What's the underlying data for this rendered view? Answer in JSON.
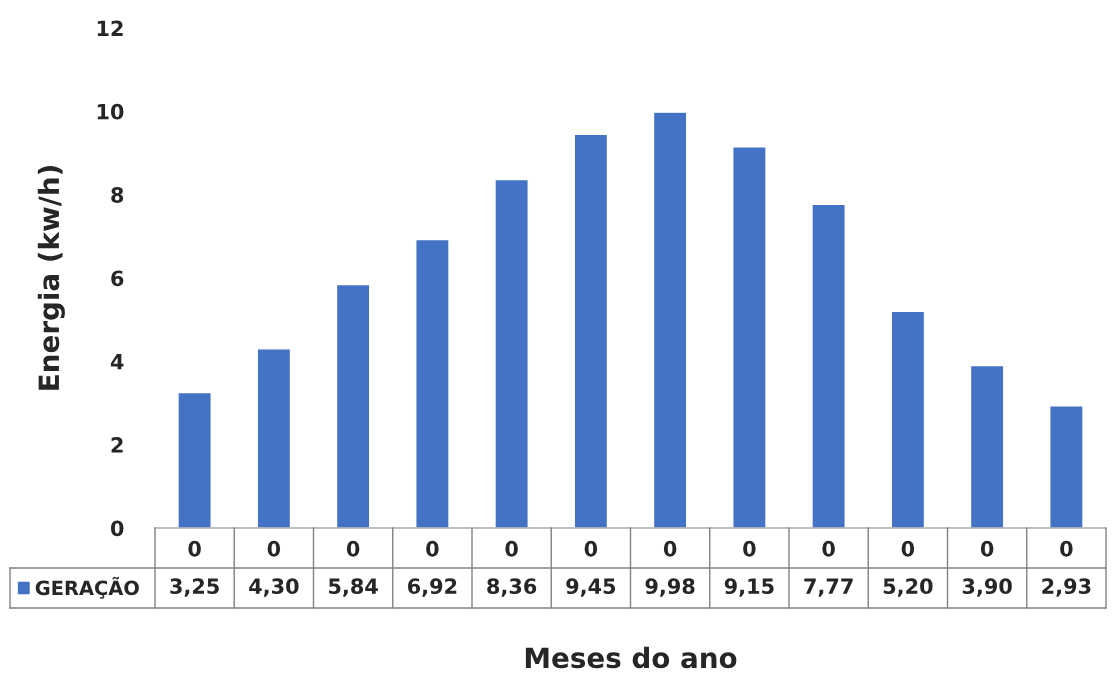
{
  "chart_data": {
    "type": "bar",
    "xlabel": "Meses do ano",
    "ylabel": "Energia (kw/h)",
    "categories": [
      "0",
      "0",
      "0",
      "0",
      "0",
      "0",
      "0",
      "0",
      "0",
      "0",
      "0",
      "0"
    ],
    "series": [
      {
        "name": "GERAÇÃO",
        "color": "#4472c4",
        "values": [
          3.25,
          4.3,
          5.84,
          6.92,
          8.36,
          9.45,
          9.98,
          9.15,
          7.77,
          5.2,
          3.9,
          2.93
        ],
        "value_labels": [
          "3,25",
          "4,30",
          "5,84",
          "6,92",
          "8,36",
          "9,45",
          "9,98",
          "9,15",
          "7,77",
          "5,20",
          "3,90",
          "2,93"
        ]
      }
    ],
    "ylim": [
      0,
      12
    ],
    "yticks": [
      0,
      2,
      4,
      6,
      8,
      10,
      12
    ],
    "grid": false
  }
}
